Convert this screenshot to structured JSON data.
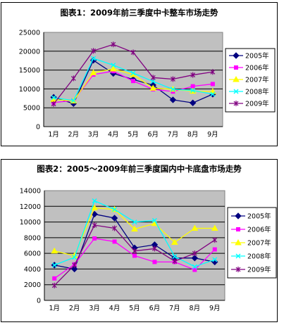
{
  "chart_data": [
    {
      "type": "line",
      "title": "图表1：2009年前三季度中卡整车市场走势",
      "categories": [
        "1月",
        "2月",
        "3月",
        "4月",
        "5月",
        "6月",
        "7月",
        "8月",
        "9月"
      ],
      "ylim": [
        0,
        25000
      ],
      "yticks": [
        0,
        5000,
        10000,
        15000,
        20000,
        25000
      ],
      "grid": true,
      "legend": "right",
      "series": [
        {
          "name": "2005年",
          "color": "#000080",
          "marker": "diamond",
          "values": [
            7800,
            6100,
            17600,
            14100,
            12500,
            11000,
            7100,
            6300,
            8600
          ]
        },
        {
          "name": "2006年",
          "color": "#ff00ff",
          "marker": "square",
          "values": [
            6400,
            6900,
            13800,
            14700,
            12100,
            9900,
            9300,
            10700,
            11300
          ]
        },
        {
          "name": "2007年",
          "color": "#ffff00",
          "marker": "triangle",
          "values": [
            7200,
            6800,
            14300,
            15300,
            13800,
            10200,
            9900,
            9400,
            9300
          ]
        },
        {
          "name": "2008年",
          "color": "#00ffff",
          "marker": "x",
          "values": [
            7700,
            6900,
            18100,
            16300,
            14200,
            12000,
            9900,
            9600,
            8600
          ]
        },
        {
          "name": "2009年",
          "color": "#800080",
          "marker": "star",
          "values": [
            6000,
            12800,
            20100,
            21800,
            19700,
            13000,
            12600,
            13700,
            14500
          ]
        }
      ]
    },
    {
      "type": "line",
      "title": "图表2：2005～2009年前三季度国内中卡底盘市场走势",
      "categories": [
        "1月",
        "2月",
        "3月",
        "4月",
        "5月",
        "6月",
        "7月",
        "8月",
        "9月"
      ],
      "ylim": [
        0,
        14000
      ],
      "yticks": [
        0,
        2000,
        4000,
        6000,
        8000,
        10000,
        12000,
        14000
      ],
      "grid": true,
      "legend": "right",
      "series": [
        {
          "name": "2005年",
          "color": "#000080",
          "marker": "diamond",
          "values": [
            4500,
            4000,
            11000,
            10500,
            6700,
            7100,
            5400,
            5400,
            4900
          ]
        },
        {
          "name": "2006年",
          "color": "#ff00ff",
          "marker": "square",
          "values": [
            2800,
            4600,
            7900,
            7500,
            5700,
            4900,
            4900,
            3900,
            6500
          ]
        },
        {
          "name": "2007年",
          "color": "#ffff00",
          "marker": "triangle",
          "values": [
            6300,
            5700,
            11800,
            11600,
            9100,
            9800,
            7400,
            9200,
            9200
          ]
        },
        {
          "name": "2008年",
          "color": "#00ffff",
          "marker": "x",
          "values": [
            4500,
            5500,
            12700,
            11600,
            10000,
            10200,
            5600,
            4300,
            5200
          ]
        },
        {
          "name": "2009年",
          "color": "#800080",
          "marker": "star",
          "values": [
            1900,
            4500,
            9600,
            9200,
            6300,
            6600,
            5000,
            6000,
            7700
          ]
        }
      ]
    }
  ]
}
